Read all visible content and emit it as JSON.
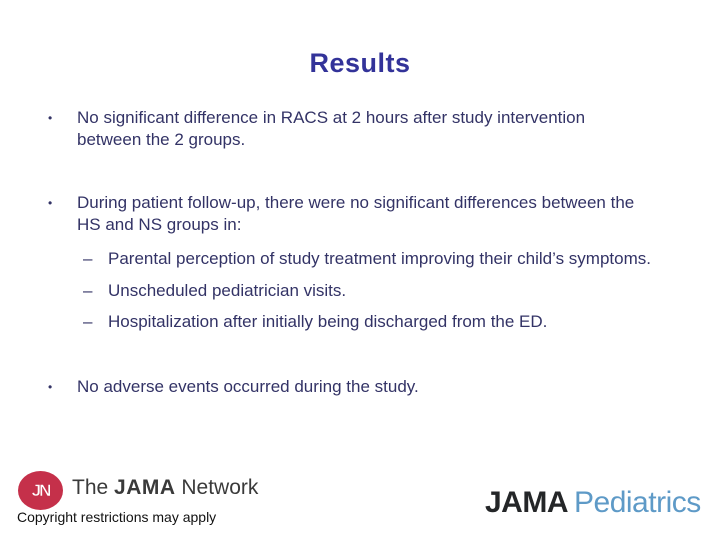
{
  "slide": {
    "title": "Results",
    "bullet_char": "•",
    "dash_char": "–",
    "bullets": [
      {
        "level": 1,
        "lines": [
          "No significant difference in RACS at 2 hours after study intervention",
          "between the 2 groups."
        ]
      },
      {
        "level": 1,
        "lines": [
          "During patient follow-up, there were no significant differences between the",
          "HS and NS groups in:"
        ]
      },
      {
        "level": 2,
        "lines": [
          "Parental perception of study treatment improving their child’s symptoms."
        ]
      },
      {
        "level": 2,
        "lines": [
          "Unscheduled pediatrician visits."
        ]
      },
      {
        "level": 2,
        "lines": [
          "Hospitalization after initially being discharged from the ED."
        ]
      },
      {
        "level": 1,
        "lines": [
          "No adverse events occurred during the study."
        ]
      }
    ]
  },
  "footer": {
    "jn_monogram": "JN",
    "network": {
      "the": "The ",
      "jama": "JAMA",
      "network": " Network"
    },
    "copyright": "Copyright restrictions may apply",
    "journal": {
      "jama": "JAMA",
      "specialty": "Pediatrics"
    }
  },
  "colors": {
    "title_blue": "#333399",
    "body_blue": "#333366",
    "jn_red": "#C5304A",
    "network_text": "#3A3A3A",
    "jama_dark": "#242628",
    "pediatrics_blue": "#5E9AC7"
  }
}
